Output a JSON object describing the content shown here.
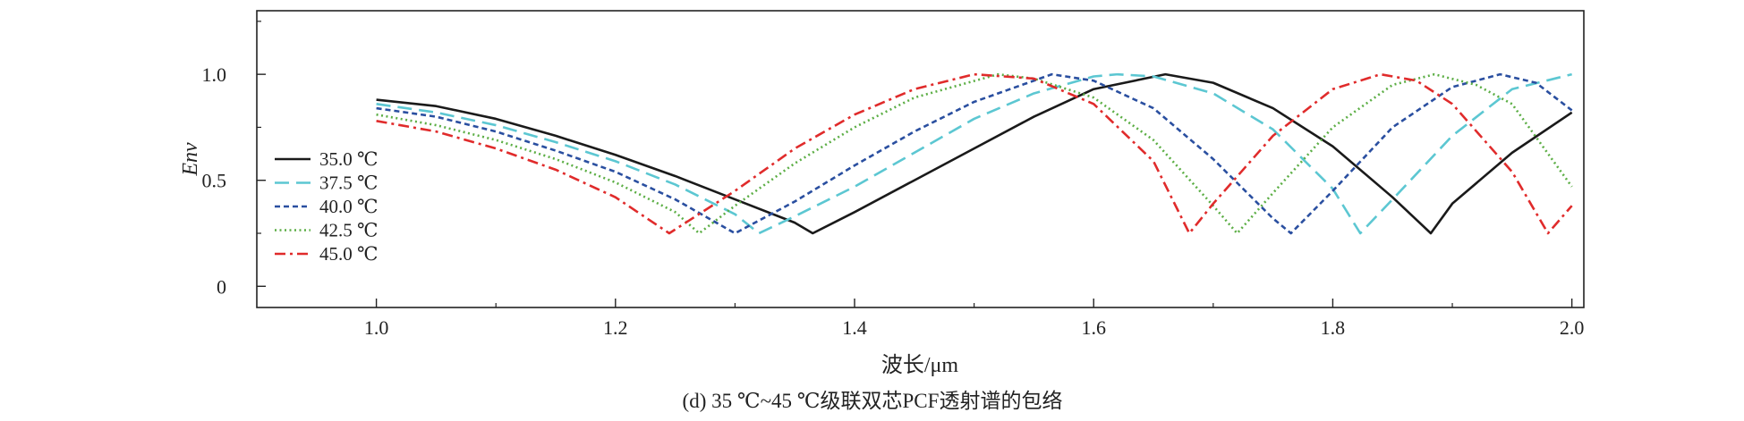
{
  "chart_data": {
    "type": "line",
    "caption": "(d) 35 ℃~45 ℃级联双芯PCF透射谱的包络",
    "xlabel": "波长/μm",
    "ylabel": "Env",
    "xlim": [
      0.9,
      2.01
    ],
    "ylim": [
      -0.1,
      1.3
    ],
    "xticks": [
      1.0,
      1.2,
      1.4,
      1.6,
      1.8,
      2.0
    ],
    "xtick_labels": [
      "1.0",
      "1.2",
      "1.4",
      "1.6",
      "1.8",
      "2.0"
    ],
    "yticks": [
      0,
      0.5,
      1.0
    ],
    "ytick_labels": [
      "0",
      "0.5",
      "1.0"
    ],
    "grid": false,
    "legend_position": "left-middle",
    "series": [
      {
        "name": "35.0 ℃",
        "color": "#1a1a1a",
        "dash": "solid",
        "x": [
          1.0,
          1.05,
          1.1,
          1.15,
          1.2,
          1.25,
          1.3,
          1.35,
          1.365,
          1.4,
          1.45,
          1.5,
          1.55,
          1.6,
          1.66,
          1.7,
          1.75,
          1.8,
          1.85,
          1.882,
          1.9,
          1.95,
          2.0
        ],
        "y": [
          0.88,
          0.85,
          0.79,
          0.71,
          0.62,
          0.52,
          0.41,
          0.3,
          0.25,
          0.35,
          0.5,
          0.65,
          0.8,
          0.93,
          1.0,
          0.96,
          0.84,
          0.66,
          0.42,
          0.25,
          0.39,
          0.63,
          0.82
        ]
      },
      {
        "name": "37.5 ℃",
        "color": "#5cc7d2",
        "dash": "long-dash",
        "x": [
          1.0,
          1.05,
          1.1,
          1.15,
          1.2,
          1.25,
          1.3,
          1.32,
          1.35,
          1.4,
          1.45,
          1.5,
          1.55,
          1.6,
          1.62,
          1.65,
          1.7,
          1.75,
          1.8,
          1.823,
          1.85,
          1.9,
          1.95,
          2.0
        ],
        "y": [
          0.86,
          0.82,
          0.76,
          0.68,
          0.59,
          0.48,
          0.34,
          0.25,
          0.33,
          0.47,
          0.63,
          0.79,
          0.91,
          0.99,
          1.0,
          0.99,
          0.91,
          0.74,
          0.46,
          0.25,
          0.41,
          0.71,
          0.93,
          1.0
        ]
      },
      {
        "name": "40.0 ℃",
        "color": "#2a4fa0",
        "dash": "short-dash",
        "x": [
          1.0,
          1.05,
          1.1,
          1.15,
          1.2,
          1.25,
          1.3,
          1.35,
          1.4,
          1.45,
          1.5,
          1.565,
          1.6,
          1.65,
          1.7,
          1.75,
          1.765,
          1.8,
          1.85,
          1.9,
          1.94,
          1.97,
          2.0
        ],
        "y": [
          0.84,
          0.8,
          0.73,
          0.64,
          0.54,
          0.41,
          0.25,
          0.4,
          0.57,
          0.73,
          0.87,
          1.0,
          0.97,
          0.84,
          0.6,
          0.32,
          0.25,
          0.45,
          0.75,
          0.94,
          1.0,
          0.96,
          0.83
        ]
      },
      {
        "name": "42.5 ℃",
        "color": "#5cae45",
        "dash": "dotted",
        "x": [
          1.0,
          1.05,
          1.1,
          1.15,
          1.2,
          1.25,
          1.27,
          1.3,
          1.35,
          1.4,
          1.45,
          1.52,
          1.55,
          1.6,
          1.65,
          1.7,
          1.72,
          1.75,
          1.8,
          1.85,
          1.885,
          1.92,
          1.95,
          2.0
        ],
        "y": [
          0.81,
          0.76,
          0.69,
          0.6,
          0.49,
          0.35,
          0.25,
          0.38,
          0.58,
          0.75,
          0.89,
          1.0,
          0.98,
          0.89,
          0.69,
          0.38,
          0.25,
          0.44,
          0.75,
          0.95,
          1.0,
          0.95,
          0.86,
          0.47
        ]
      },
      {
        "name": "45.0 ℃",
        "color": "#e02b2b",
        "dash": "dash-dot",
        "x": [
          1.0,
          1.05,
          1.1,
          1.15,
          1.2,
          1.245,
          1.3,
          1.35,
          1.4,
          1.45,
          1.5,
          1.55,
          1.6,
          1.65,
          1.68,
          1.7,
          1.75,
          1.8,
          1.84,
          1.87,
          1.9,
          1.95,
          1.98,
          2.0
        ],
        "y": [
          0.78,
          0.73,
          0.65,
          0.55,
          0.42,
          0.25,
          0.45,
          0.65,
          0.81,
          0.93,
          1.0,
          0.98,
          0.86,
          0.59,
          0.25,
          0.39,
          0.71,
          0.93,
          1.0,
          0.97,
          0.86,
          0.54,
          0.25,
          0.38
        ]
      }
    ]
  }
}
